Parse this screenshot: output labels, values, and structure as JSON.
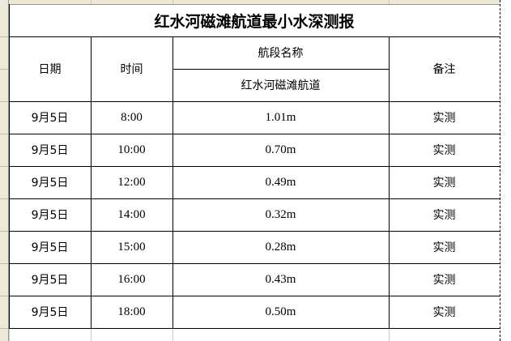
{
  "title": "红水河磁滩航道最小水深测报",
  "headers": {
    "date": "日期",
    "time": "时间",
    "section_name": "航段名称",
    "section": "红水河磁滩航道",
    "remark": "备注"
  },
  "rows": [
    {
      "date": "9月5日",
      "time": "8:00",
      "depth": "1.01m",
      "remark": "实测"
    },
    {
      "date": "9月5日",
      "time": "10:00",
      "depth": "0.70m",
      "remark": "实测"
    },
    {
      "date": "9月5日",
      "time": "12:00",
      "depth": "0.49m",
      "remark": "实测"
    },
    {
      "date": "9月5日",
      "time": "14:00",
      "depth": "0.32m",
      "remark": "实测"
    },
    {
      "date": "9月5日",
      "time": "15:00",
      "depth": "0.28m",
      "remark": "实测"
    },
    {
      "date": "9月5日",
      "time": "16:00",
      "depth": "0.43m",
      "remark": "实测"
    },
    {
      "date": "9月5日",
      "time": "18:00",
      "depth": "0.50m",
      "remark": "实测"
    }
  ]
}
